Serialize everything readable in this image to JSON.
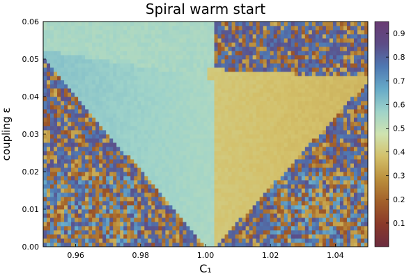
{
  "chart_data": {
    "type": "heatmap",
    "title": "Spiral warm start",
    "xlabel": "C₁",
    "ylabel": "coupling ε",
    "xlim": [
      0.95,
      1.05
    ],
    "ylim": [
      0.0,
      0.06
    ],
    "xticks": [
      0.96,
      0.98,
      1.0,
      1.02,
      1.04
    ],
    "xtick_labels": [
      "0.96",
      "0.98",
      "1.00",
      "1.02",
      "1.04"
    ],
    "yticks": [
      0.0,
      0.01,
      0.02,
      0.03,
      0.04,
      0.05,
      0.06
    ],
    "ytick_labels": [
      "0.00",
      "0.01",
      "0.02",
      "0.03",
      "0.04",
      "0.05",
      "0.06"
    ],
    "colorbar": {
      "range": [
        0.0,
        0.95
      ],
      "ticks": [
        0.1,
        0.2,
        0.3,
        0.4,
        0.5,
        0.6,
        0.7,
        0.8,
        0.9
      ],
      "tick_labels": [
        "0.1",
        "0.2",
        "0.3",
        "0.4",
        "0.5",
        "0.6",
        "0.7",
        "0.8",
        "0.9"
      ],
      "colormap": [
        "#6b2c3f",
        "#8a3a2a",
        "#a2602a",
        "#bb8f3c",
        "#d3c06a",
        "#cfe3b0",
        "#9fd3c9",
        "#67aac8",
        "#4f78b2",
        "#5c4c86",
        "#6a3b73"
      ]
    },
    "regions": {
      "left_wedge_value": 0.55,
      "right_wedge_value": 0.4,
      "outside_value": 0.85,
      "lower_outside_value": 0.15
    },
    "grid": false
  }
}
